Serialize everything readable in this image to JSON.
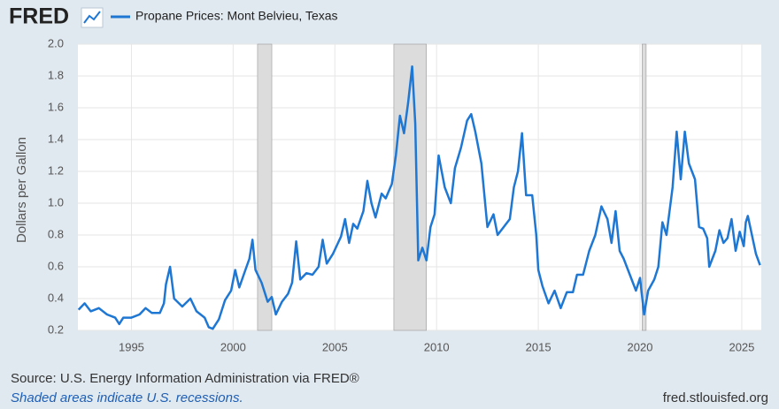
{
  "chart_data": {
    "type": "line",
    "brand": "FRED",
    "ylabel": "Dollars per Gallon",
    "source": "Source: U.S. Energy Information Administration via FRED®",
    "note": "Shaded areas indicate U.S. recessions.",
    "url": "fred.stlouisfed.org",
    "xlim": [
      1992.37,
      2025.96
    ],
    "xticks": [
      1995,
      2000,
      2005,
      2010,
      2015,
      2020,
      2025
    ],
    "ylim": [
      0.2,
      2.0
    ],
    "yticks": [
      0.2,
      0.4,
      0.6,
      0.8,
      {
        "value": 1,
        "label": "1.0"
      },
      1.2,
      1.4,
      1.6,
      1.8,
      {
        "value": 2,
        "label": "2.0"
      }
    ],
    "grid": true,
    "recessions": [
      [
        2001.2,
        2001.9
      ],
      [
        2007.9,
        2009.5
      ],
      [
        2020.1,
        2020.3
      ]
    ],
    "x": [
      1992.4,
      1992.7,
      1993.0,
      1993.4,
      1993.8,
      1994.2,
      1994.4,
      1994.6,
      1995.0,
      1995.4,
      1995.7,
      1996.0,
      1996.4,
      1996.6,
      1996.7,
      1996.9,
      1997.1,
      1997.5,
      1997.9,
      1998.2,
      1998.6,
      1998.8,
      1999.0,
      1999.3,
      1999.6,
      1999.9,
      2000.1,
      2000.3,
      2000.6,
      2000.8,
      2000.95,
      2001.1,
      2001.4,
      2001.7,
      2001.9,
      2002.1,
      2002.4,
      2002.7,
      2002.9,
      2003.1,
      2003.3,
      2003.6,
      2003.9,
      2004.2,
      2004.4,
      2004.6,
      2004.9,
      2005.3,
      2005.5,
      2005.7,
      2005.9,
      2006.1,
      2006.4,
      2006.6,
      2006.8,
      2007.0,
      2007.3,
      2007.5,
      2007.8,
      2008.0,
      2008.2,
      2008.4,
      2008.6,
      2008.8,
      2008.95,
      2009.1,
      2009.3,
      2009.5,
      2009.7,
      2009.9,
      2010.1,
      2010.4,
      2010.7,
      2010.9,
      2011.2,
      2011.5,
      2011.7,
      2011.9,
      2012.2,
      2012.5,
      2012.8,
      2013.0,
      2013.3,
      2013.6,
      2013.8,
      2014.0,
      2014.2,
      2014.4,
      2014.7,
      2014.9,
      2015.0,
      2015.2,
      2015.5,
      2015.8,
      2016.1,
      2016.4,
      2016.7,
      2016.9,
      2017.2,
      2017.5,
      2017.8,
      2018.1,
      2018.4,
      2018.6,
      2018.8,
      2019.0,
      2019.2,
      2019.5,
      2019.8,
      2020.0,
      2020.2,
      2020.4,
      2020.7,
      2020.9,
      2021.1,
      2021.3,
      2021.6,
      2021.8,
      2022.0,
      2022.2,
      2022.4,
      2022.7,
      2022.9,
      2023.1,
      2023.3,
      2023.4,
      2023.7,
      2023.9,
      2024.1,
      2024.3,
      2024.5,
      2024.7,
      2024.9,
      2025.1,
      2025.2,
      2025.3,
      2025.5,
      2025.7,
      2025.9
    ],
    "series": [
      {
        "name": "Propane Prices: Mont Belvieu, Texas",
        "color": "#1f77d4",
        "values": [
          0.33,
          0.37,
          0.32,
          0.34,
          0.3,
          0.28,
          0.24,
          0.28,
          0.28,
          0.3,
          0.34,
          0.31,
          0.31,
          0.37,
          0.49,
          0.6,
          0.4,
          0.35,
          0.4,
          0.32,
          0.28,
          0.22,
          0.21,
          0.27,
          0.39,
          0.45,
          0.58,
          0.47,
          0.58,
          0.65,
          0.77,
          0.58,
          0.5,
          0.38,
          0.41,
          0.3,
          0.38,
          0.43,
          0.5,
          0.76,
          0.52,
          0.56,
          0.55,
          0.6,
          0.77,
          0.62,
          0.68,
          0.79,
          0.9,
          0.75,
          0.87,
          0.84,
          0.95,
          1.14,
          1.0,
          0.91,
          1.06,
          1.03,
          1.12,
          1.3,
          1.55,
          1.44,
          1.63,
          1.86,
          1.5,
          0.64,
          0.72,
          0.64,
          0.85,
          0.93,
          1.3,
          1.1,
          1.0,
          1.22,
          1.35,
          1.52,
          1.56,
          1.45,
          1.25,
          0.85,
          0.93,
          0.8,
          0.85,
          0.9,
          1.1,
          1.2,
          1.44,
          1.05,
          1.05,
          0.8,
          0.58,
          0.48,
          0.37,
          0.45,
          0.34,
          0.44,
          0.44,
          0.55,
          0.55,
          0.7,
          0.8,
          0.98,
          0.9,
          0.75,
          0.95,
          0.7,
          0.65,
          0.55,
          0.45,
          0.53,
          0.3,
          0.45,
          0.52,
          0.6,
          0.88,
          0.8,
          1.1,
          1.45,
          1.15,
          1.45,
          1.25,
          1.15,
          0.85,
          0.84,
          0.78,
          0.6,
          0.7,
          0.83,
          0.75,
          0.78,
          0.9,
          0.7,
          0.82,
          0.73,
          0.88,
          0.92,
          0.8,
          0.68,
          0.61
        ]
      }
    ]
  }
}
